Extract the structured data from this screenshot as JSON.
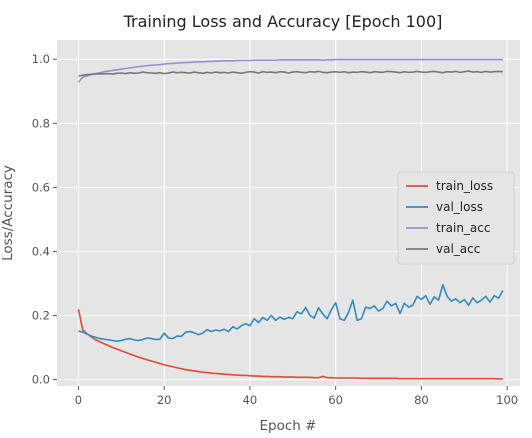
{
  "chart_data": {
    "type": "line",
    "style": "ggplot",
    "title": "Training Loss and Accuracy [Epoch 100]",
    "xlabel": "Epoch #",
    "ylabel": "Loss/Accuracy",
    "xlim": [
      -5,
      103
    ],
    "ylim": [
      -0.02,
      1.06
    ],
    "xticks": [
      0,
      20,
      40,
      60,
      80,
      100
    ],
    "yticks": [
      0.0,
      0.2,
      0.4,
      0.6,
      0.8,
      1.0
    ],
    "xtick_labels": [
      "0",
      "20",
      "40",
      "60",
      "80",
      "100"
    ],
    "ytick_labels": [
      "0.0",
      "0.2",
      "0.4",
      "0.6",
      "0.8",
      "1.0"
    ],
    "grid": true,
    "legend_position": "center-right",
    "x": [
      0,
      1,
      2,
      3,
      4,
      5,
      6,
      7,
      8,
      9,
      10,
      11,
      12,
      13,
      14,
      15,
      16,
      17,
      18,
      19,
      20,
      21,
      22,
      23,
      24,
      25,
      26,
      27,
      28,
      29,
      30,
      31,
      32,
      33,
      34,
      35,
      36,
      37,
      38,
      39,
      40,
      41,
      42,
      43,
      44,
      45,
      46,
      47,
      48,
      49,
      50,
      51,
      52,
      53,
      54,
      55,
      56,
      57,
      58,
      59,
      60,
      61,
      62,
      63,
      64,
      65,
      66,
      67,
      68,
      69,
      70,
      71,
      72,
      73,
      74,
      75,
      76,
      77,
      78,
      79,
      80,
      81,
      82,
      83,
      84,
      85,
      86,
      87,
      88,
      89,
      90,
      91,
      92,
      93,
      94,
      95,
      96,
      97,
      98,
      99
    ],
    "series": [
      {
        "name": "train_loss",
        "color": "#E24A33",
        "values": [
          0.22,
          0.155,
          0.143,
          0.133,
          0.124,
          0.118,
          0.112,
          0.106,
          0.1,
          0.095,
          0.09,
          0.085,
          0.08,
          0.075,
          0.07,
          0.066,
          0.062,
          0.058,
          0.054,
          0.05,
          0.046,
          0.043,
          0.04,
          0.037,
          0.034,
          0.031,
          0.029,
          0.027,
          0.025,
          0.023,
          0.022,
          0.02,
          0.019,
          0.018,
          0.017,
          0.016,
          0.015,
          0.014,
          0.013,
          0.013,
          0.012,
          0.011,
          0.011,
          0.01,
          0.01,
          0.009,
          0.009,
          0.009,
          0.008,
          0.008,
          0.008,
          0.007,
          0.007,
          0.007,
          0.007,
          0.006,
          0.006,
          0.01,
          0.006,
          0.006,
          0.005,
          0.005,
          0.005,
          0.005,
          0.005,
          0.005,
          0.004,
          0.004,
          0.004,
          0.004,
          0.004,
          0.004,
          0.004,
          0.004,
          0.004,
          0.003,
          0.003,
          0.003,
          0.003,
          0.003,
          0.003,
          0.003,
          0.003,
          0.003,
          0.003,
          0.003,
          0.003,
          0.003,
          0.003,
          0.003,
          0.003,
          0.003,
          0.003,
          0.003,
          0.003,
          0.003,
          0.003,
          0.003,
          0.002,
          0.002
        ]
      },
      {
        "name": "val_loss",
        "color": "#348ABD",
        "values": [
          0.152,
          0.148,
          0.142,
          0.136,
          0.132,
          0.128,
          0.126,
          0.124,
          0.122,
          0.12,
          0.122,
          0.126,
          0.128,
          0.124,
          0.122,
          0.125,
          0.13,
          0.128,
          0.125,
          0.126,
          0.145,
          0.13,
          0.128,
          0.136,
          0.135,
          0.148,
          0.15,
          0.146,
          0.14,
          0.145,
          0.156,
          0.15,
          0.155,
          0.152,
          0.157,
          0.15,
          0.165,
          0.158,
          0.168,
          0.175,
          0.168,
          0.19,
          0.178,
          0.194,
          0.185,
          0.2,
          0.185,
          0.195,
          0.188,
          0.194,
          0.19,
          0.212,
          0.205,
          0.225,
          0.2,
          0.192,
          0.224,
          0.205,
          0.19,
          0.218,
          0.24,
          0.19,
          0.185,
          0.21,
          0.248,
          0.185,
          0.19,
          0.226,
          0.222,
          0.23,
          0.214,
          0.222,
          0.245,
          0.23,
          0.238,
          0.206,
          0.238,
          0.226,
          0.232,
          0.26,
          0.25,
          0.262,
          0.235,
          0.258,
          0.248,
          0.296,
          0.26,
          0.245,
          0.252,
          0.24,
          0.25,
          0.232,
          0.255,
          0.24,
          0.248,
          0.26,
          0.242,
          0.262,
          0.254,
          0.278
        ]
      },
      {
        "name": "train_acc",
        "color": "#988ED5",
        "values": [
          0.928,
          0.944,
          0.948,
          0.952,
          0.955,
          0.958,
          0.961,
          0.963,
          0.965,
          0.967,
          0.969,
          0.971,
          0.973,
          0.975,
          0.977,
          0.978,
          0.98,
          0.981,
          0.982,
          0.983,
          0.985,
          0.986,
          0.987,
          0.988,
          0.989,
          0.99,
          0.99,
          0.991,
          0.992,
          0.992,
          0.993,
          0.993,
          0.994,
          0.994,
          0.995,
          0.995,
          0.995,
          0.996,
          0.996,
          0.996,
          0.996,
          0.997,
          0.997,
          0.997,
          0.997,
          0.997,
          0.997,
          0.998,
          0.998,
          0.998,
          0.998,
          0.998,
          0.998,
          0.998,
          0.998,
          0.998,
          0.998,
          0.997,
          0.998,
          0.998,
          0.999,
          0.999,
          0.999,
          0.999,
          0.999,
          0.999,
          0.999,
          0.999,
          0.999,
          0.999,
          0.999,
          0.999,
          0.999,
          0.999,
          0.999,
          0.999,
          0.999,
          0.999,
          0.999,
          0.999,
          0.999,
          0.999,
          0.999,
          0.999,
          0.999,
          0.999,
          0.999,
          0.999,
          0.999,
          0.999,
          0.999,
          0.999,
          0.999,
          0.999,
          0.999,
          0.999,
          0.999,
          0.999,
          0.999,
          0.999
        ]
      },
      {
        "name": "val_acc",
        "color": "#777777",
        "values": [
          0.948,
          0.95,
          0.952,
          0.953,
          0.954,
          0.954,
          0.955,
          0.955,
          0.954,
          0.956,
          0.957,
          0.955,
          0.958,
          0.956,
          0.957,
          0.96,
          0.958,
          0.957,
          0.956,
          0.958,
          0.955,
          0.957,
          0.96,
          0.958,
          0.959,
          0.958,
          0.957,
          0.96,
          0.958,
          0.956,
          0.959,
          0.957,
          0.96,
          0.958,
          0.959,
          0.957,
          0.96,
          0.958,
          0.956,
          0.959,
          0.961,
          0.96,
          0.957,
          0.961,
          0.959,
          0.96,
          0.958,
          0.961,
          0.96,
          0.957,
          0.96,
          0.961,
          0.959,
          0.958,
          0.961,
          0.96,
          0.962,
          0.959,
          0.958,
          0.96,
          0.961,
          0.959,
          0.961,
          0.958,
          0.96,
          0.959,
          0.961,
          0.96,
          0.958,
          0.961,
          0.96,
          0.959,
          0.962,
          0.961,
          0.96,
          0.958,
          0.961,
          0.959,
          0.96,
          0.962,
          0.96,
          0.959,
          0.961,
          0.962,
          0.96,
          0.958,
          0.961,
          0.96,
          0.962,
          0.959,
          0.961,
          0.963,
          0.96,
          0.961,
          0.959,
          0.962,
          0.96,
          0.961,
          0.962,
          0.961
        ]
      }
    ]
  }
}
